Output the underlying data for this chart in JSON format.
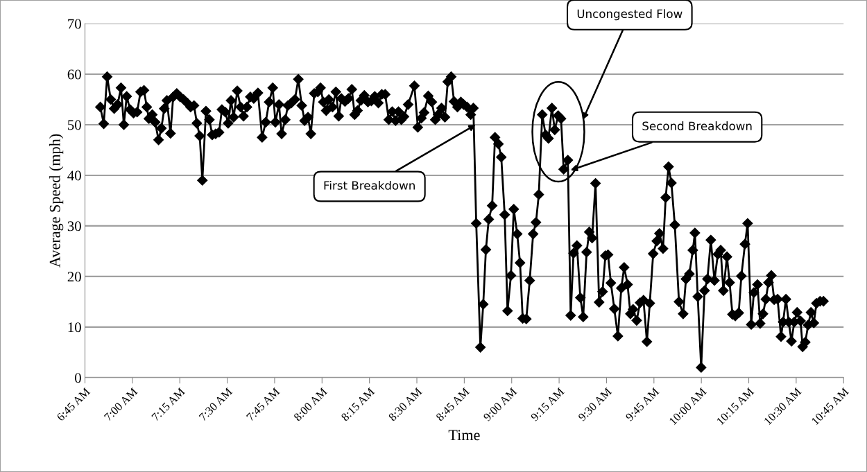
{
  "chart_data": {
    "type": "line",
    "xlabel": "Time",
    "ylabel": "Average Speed (mph)",
    "x": [
      6.831,
      6.849,
      6.867,
      6.886,
      6.904,
      6.922,
      6.94,
      6.955,
      6.97,
      6.988,
      7.006,
      7.025,
      7.043,
      7.061,
      7.076,
      7.087,
      7.105,
      7.12,
      7.138,
      7.153,
      7.168,
      7.182,
      7.201,
      7.215,
      7.234,
      7.252,
      7.27,
      7.289,
      7.307,
      7.325,
      7.34,
      7.355,
      7.369,
      7.388,
      7.406,
      7.421,
      7.439,
      7.457,
      7.472,
      7.49,
      7.505,
      7.52,
      7.534,
      7.553,
      7.571,
      7.586,
      7.604,
      7.622,
      7.64,
      7.662,
      7.684,
      7.703,
      7.721,
      7.74,
      7.754,
      7.773,
      7.787,
      7.806,
      7.82,
      7.838,
      7.857,
      7.875,
      7.893,
      7.908,
      7.926,
      7.941,
      7.959,
      7.978,
      7.992,
      8.007,
      8.022,
      8.036,
      8.055,
      8.073,
      8.088,
      8.102,
      8.121,
      8.139,
      8.157,
      8.172,
      8.187,
      8.205,
      8.223,
      8.242,
      8.26,
      8.278,
      8.297,
      8.315,
      8.333,
      8.352,
      8.37,
      8.388,
      8.403,
      8.418,
      8.432,
      8.454,
      8.487,
      8.505,
      8.524,
      8.538,
      8.56,
      8.579,
      8.597,
      8.612,
      8.63,
      8.648,
      8.663,
      8.681,
      8.696,
      8.714,
      8.732,
      8.747,
      8.765,
      8.784,
      8.798,
      8.813,
      8.835,
      8.85,
      8.864,
      8.879,
      8.897,
      8.912,
      8.93,
      8.945,
      8.963,
      8.978,
      8.996,
      9.011,
      9.029,
      9.044,
      9.058,
      9.077,
      9.095,
      9.113,
      9.128,
      9.143,
      9.161,
      9.179,
      9.194,
      9.212,
      9.227,
      9.245,
      9.26,
      9.274,
      9.296,
      9.311,
      9.326,
      9.344,
      9.362,
      9.377,
      9.395,
      9.409,
      9.424,
      9.442,
      9.461,
      9.479,
      9.494,
      9.508,
      9.523,
      9.541,
      9.56,
      9.578,
      9.593,
      9.611,
      9.626,
      9.64,
      9.659,
      9.677,
      9.695,
      9.713,
      9.728,
      9.746,
      9.765,
      9.779,
      9.798,
      9.812,
      9.827,
      9.842,
      9.86,
      9.882,
      9.904,
      9.919,
      9.937,
      9.955,
      9.966,
      9.981,
      9.999,
      10.017,
      10.032,
      10.05,
      10.069,
      10.087,
      10.102,
      10.116,
      10.135,
      10.149,
      10.164,
      10.179,
      10.197,
      10.211,
      10.23,
      10.244,
      10.263,
      10.277,
      10.296,
      10.31,
      10.325,
      10.34,
      10.354,
      10.369,
      10.384,
      10.402,
      10.42,
      10.431,
      10.446,
      10.461,
      10.475,
      10.49,
      10.505,
      10.523,
      10.534,
      10.548,
      10.563,
      10.578,
      10.593,
      10.607,
      10.626,
      10.644
    ],
    "series": [
      {
        "color": "#000000",
        "values": [
          53.5,
          50.2,
          59.5,
          55,
          53.2,
          54,
          57.3,
          50,
          55.6,
          53,
          52.3,
          52.5,
          56.5,
          56.8,
          53.5,
          51.2,
          52,
          50.5,
          47,
          49.3,
          53.2,
          54.8,
          48.3,
          55.5,
          56.2,
          55.5,
          55,
          54.3,
          53.5,
          53.8,
          50.3,
          47.8,
          39,
          52.7,
          51,
          48,
          48.2,
          48.5,
          53,
          52.5,
          50.3,
          54.8,
          51.5,
          56.7,
          53.5,
          51.7,
          53.5,
          55.5,
          55.2,
          56.3,
          47.5,
          50.5,
          54.5,
          57.3,
          50.5,
          54,
          48.2,
          51,
          53.8,
          54.3,
          55,
          59,
          53.8,
          50.8,
          51.5,
          48.2,
          56.2,
          56.5,
          57.3,
          54.5,
          52.8,
          55,
          53.5,
          56.5,
          51.7,
          55.2,
          54.6,
          55.2,
          57,
          52,
          52.8,
          54.8,
          55.8,
          54.5,
          54.7,
          55.6,
          54.3,
          56,
          56,
          51,
          52.6,
          50.8,
          52.6,
          51,
          51.6,
          54,
          57.7,
          49.5,
          51.3,
          52.4,
          55.7,
          54.5,
          51,
          52,
          53.3,
          51.5,
          58.5,
          59.5,
          54.6,
          53.5,
          54.5,
          54,
          53.5,
          52,
          53.3,
          30.5,
          6,
          14.5,
          25.3,
          31.3,
          34,
          47.5,
          46.2,
          43.6,
          32.2,
          13.2,
          20.2,
          33.3,
          28.4,
          22.7,
          11.7,
          11.6,
          19.2,
          28.4,
          30.7,
          36.2,
          52,
          48,
          47.3,
          53.3,
          49,
          51.8,
          51.2,
          41.2,
          43,
          12.3,
          24.6,
          26.1,
          15.8,
          12,
          24.8,
          28.8,
          27.6,
          38.4,
          14.9,
          17,
          24.1,
          24.3,
          18.7,
          13.6,
          8.2,
          17.7,
          21.8,
          18.4,
          12.6,
          13.5,
          11.3,
          14.8,
          15.3,
          7.1,
          14.7,
          24.5,
          27,
          28.5,
          25.5,
          35.6,
          41.7,
          38.5,
          30.2,
          15,
          12.6,
          19.5,
          20.5,
          25.2,
          28.6,
          16,
          2,
          17.2,
          19.5,
          27.2,
          19.2,
          24.4,
          25.2,
          17.2,
          23.9,
          18.8,
          12.5,
          12.2,
          12.8,
          20.1,
          26.4,
          30.5,
          10.5,
          16.8,
          18.4,
          10.7,
          12.6,
          15.5,
          18.8,
          20.2,
          15.4,
          15.5,
          8.1,
          11,
          15.5,
          11,
          7.2,
          11,
          12.9,
          11.2,
          6.1,
          7,
          10.4,
          12.9,
          10.8,
          14.7,
          15.1,
          15.1
        ]
      }
    ],
    "xlim": [
      6.75,
      10.75
    ],
    "xticks": [
      {
        "value": 6.75,
        "label": "6:45 AM"
      },
      {
        "value": 7.0,
        "label": "7:00 AM"
      },
      {
        "value": 7.25,
        "label": "7:15 AM"
      },
      {
        "value": 7.5,
        "label": "7:30 AM"
      },
      {
        "value": 7.75,
        "label": "7:45 AM"
      },
      {
        "value": 8.0,
        "label": "8:00 AM"
      },
      {
        "value": 8.25,
        "label": "8:15 AM"
      },
      {
        "value": 8.5,
        "label": "8:30 AM"
      },
      {
        "value": 8.75,
        "label": "8:45 AM"
      },
      {
        "value": 9.0,
        "label": "9:00 AM"
      },
      {
        "value": 9.25,
        "label": "9:15 AM"
      },
      {
        "value": 9.5,
        "label": "9:30 AM"
      },
      {
        "value": 9.75,
        "label": "9:45 AM"
      },
      {
        "value": 10.0,
        "label": "10:00 AM"
      },
      {
        "value": 10.25,
        "label": "10:15 AM"
      },
      {
        "value": 10.5,
        "label": "10:30 AM"
      },
      {
        "value": 10.75,
        "label": "10:45 AM"
      }
    ],
    "ylim": [
      0,
      70
    ],
    "yticks": [
      0,
      10,
      20,
      30,
      40,
      50,
      60,
      70
    ],
    "grid": "y",
    "marker": "diamond",
    "line_style": "solid",
    "legend": false,
    "annotations": [
      {
        "text": "First Breakdown",
        "x": 8.81,
        "y": 50
      },
      "Uncongested Flow",
      {
        "text": "Second Breakdown",
        "x": 9.31,
        "y": 41
      }
    ]
  }
}
